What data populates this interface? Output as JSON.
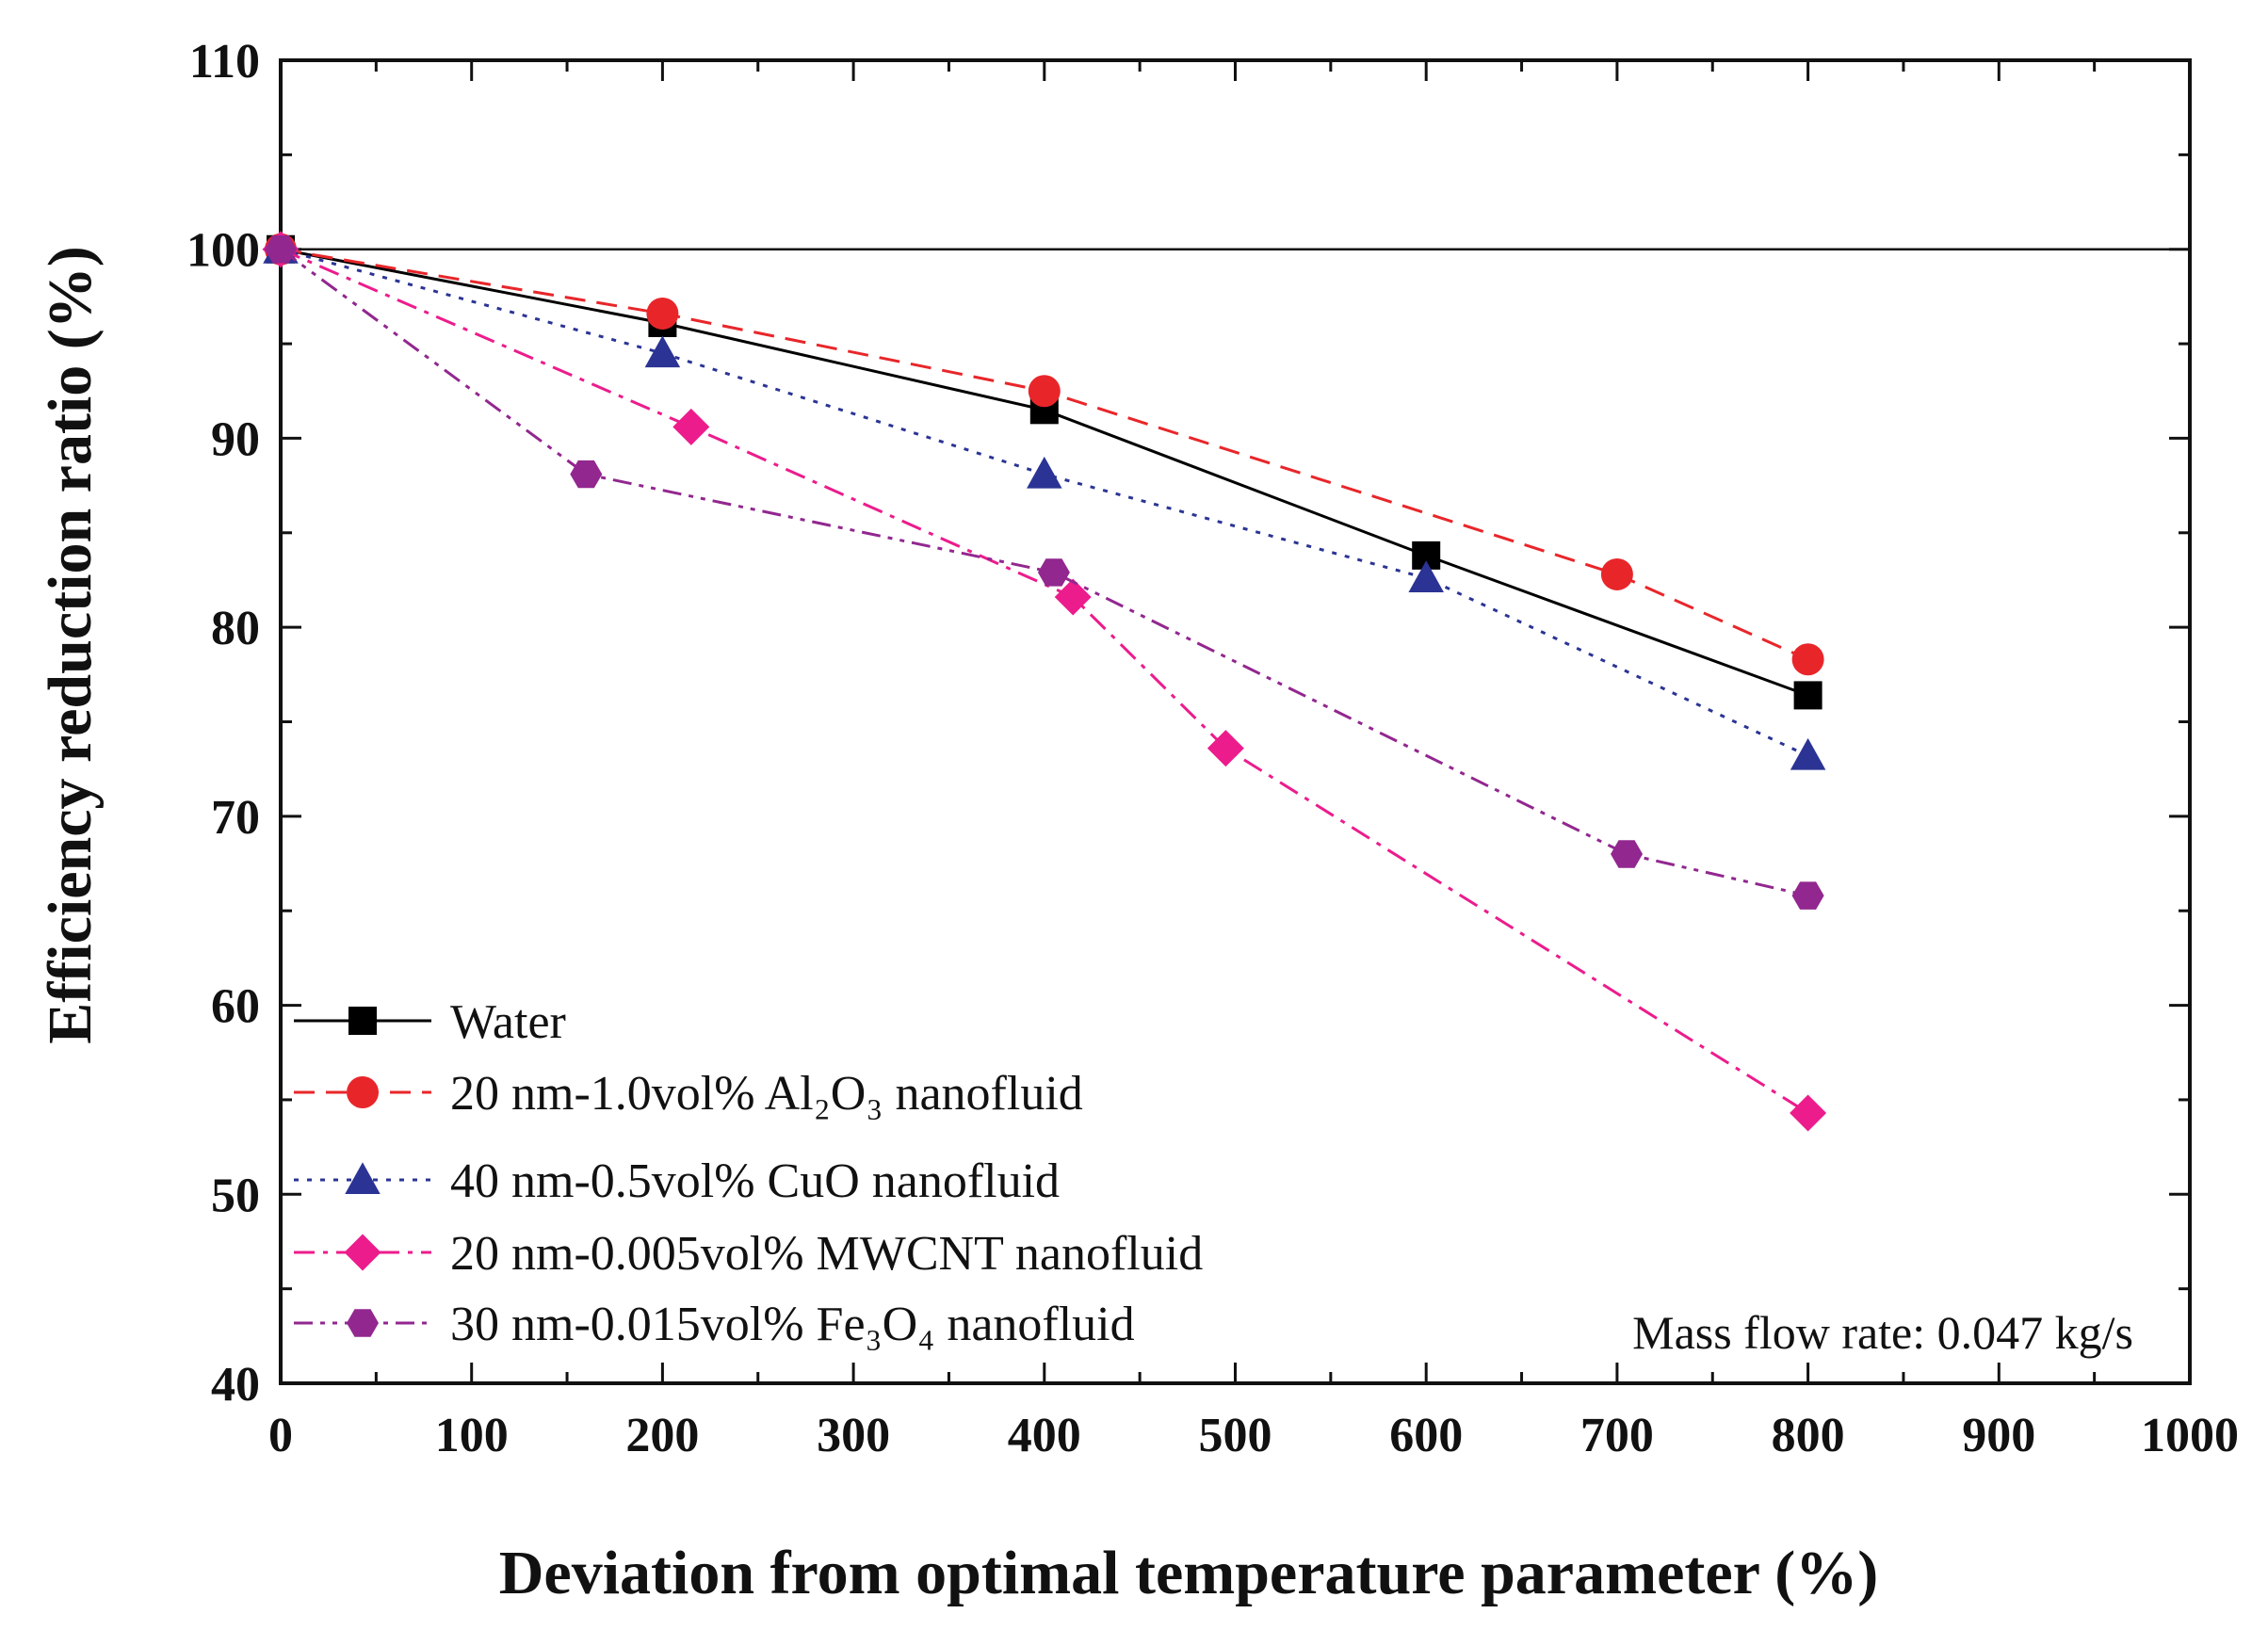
{
  "chart_data": {
    "type": "line",
    "title": "",
    "xlabel": "Deviation from optimal temperature parameter (%)",
    "ylabel": "Efficiency reduction ratio (%)",
    "xlim": [
      0,
      1000
    ],
    "ylim": [
      40,
      110
    ],
    "xticks": [
      "0",
      "100",
      "200",
      "300",
      "400",
      "500",
      "600",
      "700",
      "800",
      "900",
      "1000"
    ],
    "yticks": [
      "40",
      "50",
      "60",
      "70",
      "80",
      "90",
      "100",
      "110"
    ],
    "reference_line": 100,
    "legend_position": "bottom-left",
    "annotation": "Mass flow rate: 0.047 kg/s",
    "series": [
      {
        "name": "Water",
        "color": "#000000",
        "marker": "square",
        "line_style": "solid",
        "x": [
          0,
          200,
          400,
          600,
          800
        ],
        "y": [
          100,
          96.1,
          91.5,
          83.8,
          76.4
        ]
      },
      {
        "name": "20 nm-1.0vol% Al₂O₃ nanofluid",
        "color": "#e8262a",
        "marker": "circle",
        "line_style": "dashed",
        "x": [
          0,
          200,
          400,
          700,
          800
        ],
        "y": [
          100,
          96.6,
          92.5,
          82.8,
          78.3
        ]
      },
      {
        "name": "40 nm-0.5vol% CuO nanofluid",
        "color": "#2b3494",
        "marker": "triangle",
        "line_style": "dotted",
        "x": [
          0,
          200,
          400,
          600,
          800
        ],
        "y": [
          100,
          94.5,
          88.1,
          82.6,
          73.2
        ]
      },
      {
        "name": "20 nm-0.005vol% MWCNT nanofluid",
        "color": "#ec1c8c",
        "marker": "diamond",
        "line_style": "dashdot",
        "x": [
          0,
          215,
          415,
          495,
          800
        ],
        "y": [
          100,
          90.6,
          81.6,
          73.6,
          54.3
        ]
      },
      {
        "name": "30 nm-0.015vol% Fe₃O₄ nanofluid",
        "color": "#92278f",
        "marker": "hexagon",
        "line_style": "dashdotdot",
        "x": [
          0,
          160,
          405,
          705,
          800
        ],
        "y": [
          100,
          88.1,
          82.9,
          68.0,
          65.8
        ]
      }
    ]
  }
}
